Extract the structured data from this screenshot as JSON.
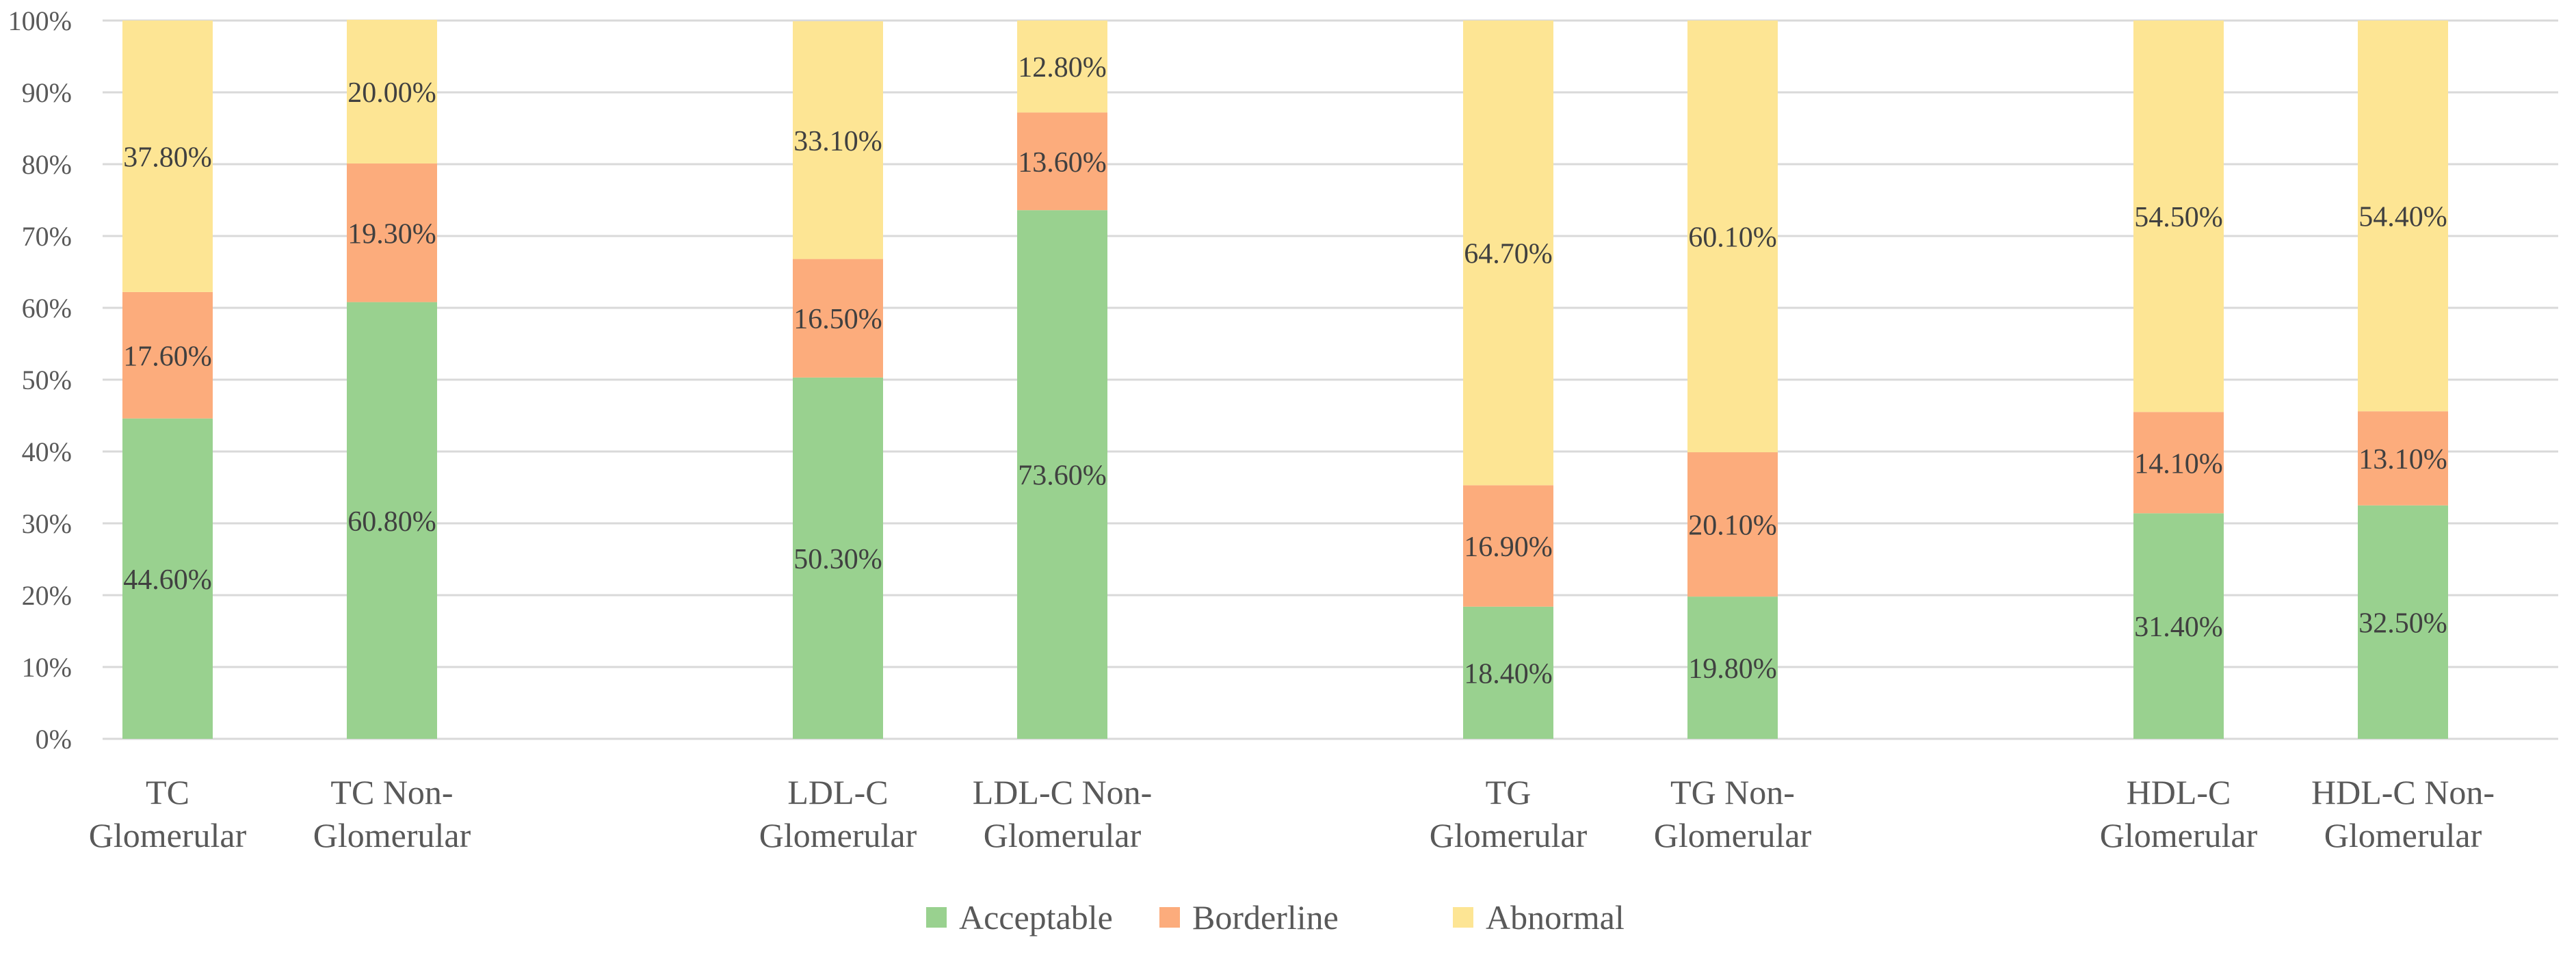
{
  "chart_data": {
    "type": "bar",
    "stacked": true,
    "categories": [
      [
        "TC",
        "Glomerular"
      ],
      [
        "TC Non-",
        "Glomerular"
      ],
      [
        "LDL-C",
        "Glomerular"
      ],
      [
        "LDL-C Non-",
        "Glomerular"
      ],
      [
        "TG",
        "Glomerular"
      ],
      [
        "TG Non-",
        "Glomerular"
      ],
      [
        "HDL-C",
        "Glomerular"
      ],
      [
        "HDL-C Non-",
        "Glomerular"
      ]
    ],
    "series": [
      {
        "name": "Acceptable",
        "color": "#99d18f",
        "values": [
          44.6,
          60.8,
          50.3,
          73.6,
          18.4,
          19.8,
          31.4,
          32.5
        ],
        "labels": [
          "44.60%",
          "60.80%",
          "50.30%",
          "73.60%",
          "18.40%",
          "19.80%",
          "31.40%",
          "32.50%"
        ]
      },
      {
        "name": "Borderline",
        "color": "#fcac7c",
        "values": [
          17.6,
          19.3,
          16.5,
          13.6,
          16.9,
          20.1,
          14.1,
          13.1
        ],
        "labels": [
          "17.60%",
          "19.30%",
          "16.50%",
          "13.60%",
          "16.90%",
          "20.10%",
          "14.10%",
          "13.10%"
        ]
      },
      {
        "name": "Abnormal",
        "color": "#fde594",
        "values": [
          37.8,
          20.0,
          33.1,
          12.8,
          64.7,
          60.1,
          54.5,
          54.4
        ],
        "labels": [
          "37.80%",
          "20.00%",
          "33.10%",
          "12.80%",
          "64.70%",
          "60.10%",
          "54.50%",
          "54.40%"
        ]
      }
    ],
    "y_ticks": [
      "0%",
      "10%",
      "20%",
      "30%",
      "40%",
      "50%",
      "60%",
      "70%",
      "80%",
      "90%",
      "100%"
    ],
    "ylim": [
      0,
      100
    ],
    "grid": true,
    "legend_position": "bottom-center",
    "title": "",
    "xlabel": "",
    "ylabel": ""
  }
}
